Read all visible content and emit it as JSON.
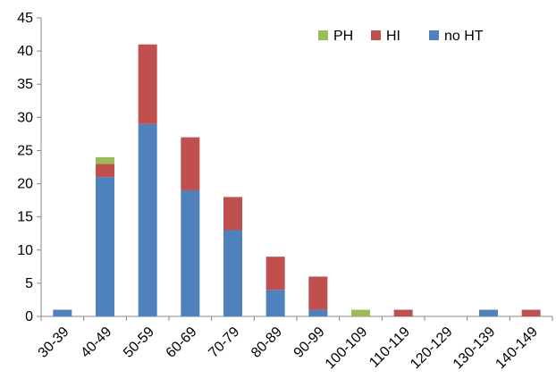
{
  "chart_data": {
    "type": "bar",
    "stacked": true,
    "categories": [
      "30-39",
      "40-49",
      "50-59",
      "60-69",
      "70-79",
      "80-89",
      "90-99",
      "100-109",
      "110-119",
      "120-129",
      "130-139",
      "140-149"
    ],
    "series": [
      {
        "name": "no HT",
        "color": "#4F81BD",
        "values": [
          1,
          21,
          29,
          19,
          13,
          4,
          1,
          0,
          0,
          0,
          1,
          0
        ]
      },
      {
        "name": "HI",
        "color": "#C0504D",
        "values": [
          0,
          2,
          12,
          8,
          5,
          5,
          5,
          0,
          1,
          0,
          0,
          1
        ]
      },
      {
        "name": "PH",
        "color": "#9BBB59",
        "values": [
          0,
          1,
          0,
          0,
          0,
          0,
          0,
          1,
          0,
          0,
          0,
          0
        ]
      }
    ],
    "legend_order": [
      "PH",
      "HI",
      "no HT"
    ],
    "legend_position": "top-right",
    "ylim": [
      0,
      45
    ],
    "yticks": [
      0,
      5,
      10,
      15,
      20,
      25,
      30,
      35,
      40,
      45
    ],
    "title": "",
    "xlabel": "",
    "ylabel": "",
    "grid": false
  }
}
